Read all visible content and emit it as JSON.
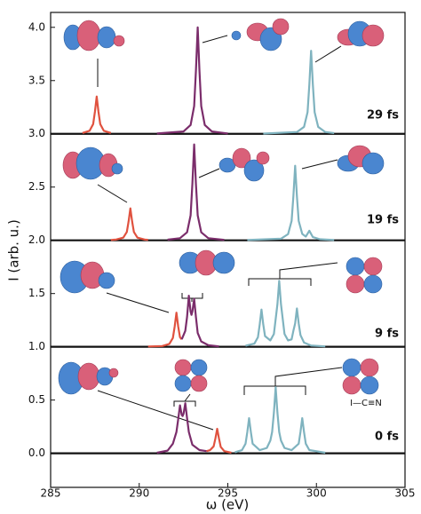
{
  "chart_data": {
    "type": "line",
    "xlabel": "ω (eV)",
    "ylabel": "I (arb. u.)",
    "xlim": [
      285,
      305
    ],
    "ylim": [
      -0.32,
      4.14
    ],
    "xticks": [
      285,
      290,
      295,
      300,
      305
    ],
    "yticks": [
      {
        "value": 0,
        "label": "0.0"
      },
      0.5,
      {
        "value": 1,
        "label": "1.0"
      },
      1.5,
      {
        "value": 2,
        "label": "2.0"
      },
      2.5,
      {
        "value": 3,
        "label": "3.0"
      },
      3.5,
      {
        "value": 4,
        "label": "4.0"
      }
    ],
    "grid": false,
    "panel_labels": [
      "29 fs",
      "19 fs",
      "9 fs",
      "0 fs"
    ],
    "molecule_label": "I—C≡N",
    "series": [
      {
        "color": "#111111",
        "x": [
          285,
          305
        ],
        "values": [
          3.0,
          3.0
        ]
      },
      {
        "color": "#111111",
        "x": [
          285,
          305
        ],
        "values": [
          2.0,
          2.0
        ]
      },
      {
        "color": "#111111",
        "x": [
          285,
          305
        ],
        "values": [
          1.0,
          1.0
        ]
      },
      {
        "color": "#111111",
        "x": [
          285,
          305
        ],
        "values": [
          0.0,
          0.0
        ]
      },
      {
        "color": "#e0523f",
        "x": [
          286.8,
          287.2,
          287.4,
          287.5,
          287.6,
          287.7,
          287.8,
          288.0,
          288.4
        ],
        "values": [
          3.008,
          3.029,
          3.091,
          3.207,
          3.35,
          3.207,
          3.091,
          3.029,
          3.008
        ]
      },
      {
        "color": "#7b2d6b",
        "x": [
          291,
          292.5,
          292.9,
          293.1,
          293.2,
          293.3,
          293.4,
          293.5,
          293.7,
          294.1,
          295
        ],
        "values": [
          3.003,
          3.022,
          3.083,
          3.26,
          3.59,
          4.0,
          3.59,
          3.26,
          3.083,
          3.022,
          3.003
        ]
      },
      {
        "color": "#7fb3bf",
        "x": [
          297,
          298.9,
          299.3,
          299.5,
          299.6,
          299.7,
          299.8,
          299.9,
          300.1,
          300.5,
          301
        ],
        "values": [
          3.002,
          3.017,
          3.065,
          3.203,
          3.46,
          3.78,
          3.46,
          3.203,
          3.065,
          3.017,
          3.007
        ]
      },
      {
        "color": "#e0523f",
        "x": [
          288.4,
          288.7,
          289.1,
          289.3,
          289.4,
          289.5,
          289.6,
          289.7,
          289.9,
          290.3,
          290.5
        ],
        "values": [
          2.003,
          2.007,
          2.025,
          2.078,
          2.177,
          2.3,
          2.177,
          2.078,
          2.025,
          2.007,
          2.004
        ]
      },
      {
        "color": "#7b2d6b",
        "x": [
          291.6,
          292.3,
          292.7,
          292.9,
          293.0,
          293.1,
          293.2,
          293.3,
          293.5,
          293.9,
          294.8
        ],
        "values": [
          2.006,
          2.02,
          2.075,
          2.234,
          2.531,
          2.9,
          2.531,
          2.234,
          2.075,
          2.02,
          2.004
        ]
      },
      {
        "color": "#7fb3bf",
        "x": [
          296.1,
          298.0,
          298.4,
          298.6,
          298.7,
          298.8,
          298.9,
          299.0,
          299.2,
          299.4,
          299.6,
          299.8,
          300.2,
          301.0
        ],
        "values": [
          2.003,
          2.015,
          2.058,
          2.182,
          2.413,
          2.7,
          2.413,
          2.182,
          2.06,
          2.035,
          2.09,
          2.03,
          2.01,
          2.003
        ]
      },
      {
        "color": "#e0523f",
        "x": [
          290.5,
          291.3,
          291.7,
          291.9,
          292.0,
          292.1,
          292.2,
          292.3,
          292.4
        ],
        "values": [
          1.003,
          1.007,
          1.027,
          1.083,
          1.189,
          1.32,
          1.19,
          1.09,
          1.07
        ]
      },
      {
        "color": "#7b2d6b",
        "x": [
          292.4,
          292.6,
          292.7,
          292.8,
          292.9,
          292.95,
          293.0,
          293.1,
          293.2,
          293.3,
          293.5,
          293.9,
          294.5
        ],
        "values": [
          1.07,
          1.15,
          1.28,
          1.48,
          1.33,
          1.3,
          1.33,
          1.45,
          1.28,
          1.13,
          1.05,
          1.015,
          1.004
        ]
      },
      {
        "color": "#7fb3bf",
        "x": [
          296.0,
          296.5,
          296.7,
          296.8,
          296.9,
          297.0,
          297.1,
          297.4,
          297.6,
          297.7,
          297.8,
          297.9,
          298.0,
          298.1,
          298.2,
          298.4,
          298.6,
          298.7,
          298.8,
          298.9,
          299.0,
          299.1,
          299.3,
          299.7,
          300.5
        ],
        "values": [
          1.01,
          1.03,
          1.09,
          1.21,
          1.35,
          1.21,
          1.1,
          1.06,
          1.12,
          1.26,
          1.4,
          1.62,
          1.4,
          1.26,
          1.12,
          1.06,
          1.07,
          1.15,
          1.22,
          1.36,
          1.22,
          1.11,
          1.04,
          1.012,
          1.004
        ]
      },
      {
        "color": "#7b2d6b",
        "x": [
          291.0,
          291.6,
          291.9,
          292.1,
          292.2,
          292.3,
          292.4,
          292.45,
          292.5,
          292.6,
          292.7,
          292.8,
          293.0,
          293.4,
          293.8
        ],
        "values": [
          0.005,
          0.025,
          0.09,
          0.2,
          0.32,
          0.45,
          0.36,
          0.35,
          0.37,
          0.47,
          0.33,
          0.2,
          0.08,
          0.03,
          0.02
        ]
      },
      {
        "color": "#e0523f",
        "x": [
          293.8,
          294.0,
          294.2,
          294.3,
          294.4,
          294.5,
          294.6,
          294.8,
          295.2
        ],
        "values": [
          0.02,
          0.03,
          0.065,
          0.14,
          0.23,
          0.14,
          0.06,
          0.02,
          0.005
        ]
      },
      {
        "color": "#7fb3bf",
        "x": [
          295.4,
          295.8,
          296.0,
          296.1,
          296.2,
          296.3,
          296.4,
          296.8,
          297.2,
          297.4,
          297.5,
          297.6,
          297.7,
          297.8,
          297.9,
          298.0,
          298.2,
          298.6,
          299.0,
          299.1,
          299.2,
          299.3,
          299.4,
          299.6,
          300.5
        ],
        "values": [
          0.01,
          0.03,
          0.09,
          0.2,
          0.33,
          0.2,
          0.09,
          0.03,
          0.05,
          0.12,
          0.2,
          0.38,
          0.62,
          0.38,
          0.2,
          0.12,
          0.05,
          0.03,
          0.09,
          0.2,
          0.33,
          0.2,
          0.09,
          0.03,
          0.005
        ]
      }
    ]
  }
}
